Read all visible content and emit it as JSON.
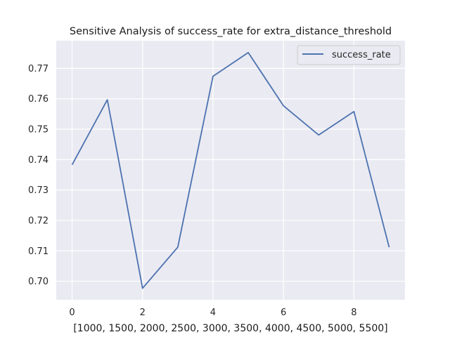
{
  "chart_data": {
    "type": "line",
    "title": "Sensitive Analysis of success_rate for extra_distance_threshold",
    "xlabel": "[1000, 1500, 2000, 2500, 3000, 3500, 4000, 4500, 5000, 5500]",
    "ylabel": "",
    "x": [
      0,
      1,
      2,
      3,
      4,
      5,
      6,
      7,
      8,
      9
    ],
    "series": [
      {
        "name": "success_rate",
        "values": [
          0.7383,
          0.7597,
          0.6977,
          0.7112,
          0.7674,
          0.7752,
          0.7577,
          0.7481,
          0.7558,
          0.7112
        ]
      }
    ],
    "xticks": [
      0,
      2,
      4,
      6,
      8
    ],
    "xtick_labels": [
      "0",
      "2",
      "4",
      "6",
      "8"
    ],
    "yticks": [
      0.7,
      0.71,
      0.72,
      0.73,
      0.74,
      0.75,
      0.76,
      0.77
    ],
    "ytick_labels": [
      "0.70",
      "0.71",
      "0.72",
      "0.73",
      "0.74",
      "0.75",
      "0.76",
      "0.77"
    ],
    "xlim": [
      -0.45,
      9.45
    ],
    "ylim": [
      0.6939,
      0.7791
    ],
    "grid": true,
    "legend": "top-right",
    "colors": {
      "line": "#4c72b0",
      "plot_bg": "#eaeaf2",
      "grid": "#ffffff"
    }
  }
}
